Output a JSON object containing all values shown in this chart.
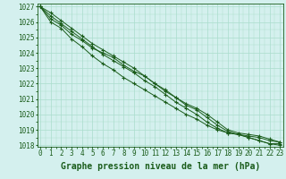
{
  "x": [
    0,
    1,
    2,
    3,
    4,
    5,
    6,
    7,
    8,
    9,
    10,
    11,
    12,
    13,
    14,
    15,
    16,
    17,
    18,
    19,
    20,
    21,
    22,
    23
  ],
  "line1": [
    1027.0,
    1026.2,
    1025.8,
    1025.2,
    1024.8,
    1024.3,
    1024.0,
    1023.7,
    1023.2,
    1022.8,
    1022.5,
    1022.0,
    1021.6,
    1021.1,
    1020.6,
    1020.3,
    1019.8,
    1019.3,
    1018.9,
    1018.7,
    1018.5,
    1018.3,
    1018.1,
    1018.1
  ],
  "line2": [
    1027.0,
    1026.0,
    1025.6,
    1024.9,
    1024.4,
    1023.8,
    1023.3,
    1022.9,
    1022.4,
    1022.0,
    1021.6,
    1021.2,
    1020.8,
    1020.4,
    1020.0,
    1019.7,
    1019.3,
    1019.0,
    1018.8,
    1018.7,
    1018.5,
    1018.3,
    1018.1,
    1018.0
  ],
  "line3": [
    1027.0,
    1026.4,
    1025.9,
    1025.4,
    1024.9,
    1024.4,
    1023.9,
    1023.5,
    1023.1,
    1022.7,
    1022.2,
    1021.8,
    1021.3,
    1020.8,
    1020.4,
    1020.0,
    1019.5,
    1019.1,
    1018.8,
    1018.7,
    1018.6,
    1018.5,
    1018.3,
    1018.2
  ],
  "line4": [
    1027.0,
    1026.6,
    1026.1,
    1025.6,
    1025.1,
    1024.6,
    1024.2,
    1023.8,
    1023.4,
    1023.0,
    1022.5,
    1022.0,
    1021.5,
    1021.1,
    1020.7,
    1020.4,
    1020.0,
    1019.5,
    1019.0,
    1018.8,
    1018.7,
    1018.6,
    1018.4,
    1018.2
  ],
  "ylim": [
    1018,
    1027
  ],
  "xlim": [
    0,
    23
  ],
  "yticks": [
    1018,
    1019,
    1020,
    1021,
    1022,
    1023,
    1024,
    1025,
    1026,
    1027
  ],
  "xticks": [
    0,
    1,
    2,
    3,
    4,
    5,
    6,
    7,
    8,
    9,
    10,
    11,
    12,
    13,
    14,
    15,
    16,
    17,
    18,
    19,
    20,
    21,
    22,
    23
  ],
  "xlabel": "Graphe pression niveau de la mer (hPa)",
  "line_color": "#1a5c1a",
  "marker": "+",
  "bg_color": "#d4f0ee",
  "grid_color": "#aaddcc",
  "tick_color": "#1a5c1a",
  "label_color": "#1a5c1a",
  "tick_fontsize": 5.5,
  "xlabel_fontsize": 7.0
}
